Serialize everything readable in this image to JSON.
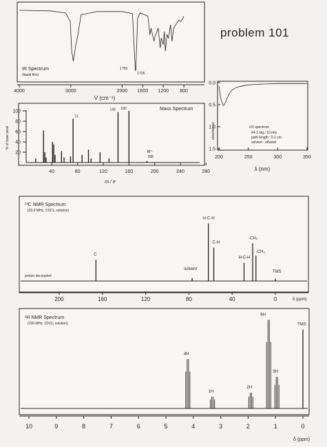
{
  "page_title": "problem 101",
  "chart_data": [
    {
      "type": "line",
      "title": "IR Spectrum",
      "subtitle": "(liquid film)",
      "xlabel": "V (cm⁻¹)",
      "xlim": [
        4000,
        400
      ],
      "x_ticks": [
        "4000",
        "3000",
        "2000",
        "1600",
        "1200",
        "800"
      ],
      "tick_values": [
        4000,
        3000,
        2000,
        1600,
        1200,
        800
      ],
      "annotations": [
        {
          "x": 1750,
          "label": "1750"
        },
        {
          "x": 1735,
          "label": "1735"
        }
      ],
      "y_ticks": [],
      "series": [
        {
          "x": [
            4000,
            3400,
            3100,
            3010,
            2980,
            2950,
            2900,
            2860,
            2800,
            2500,
            2000,
            1800,
            1760,
            1745,
            1735,
            1720,
            1700,
            1650,
            1500,
            1460,
            1440,
            1380,
            1370,
            1300,
            1260,
            1240,
            1200,
            1180,
            1160,
            1130,
            1100,
            1060,
            1030,
            1000,
            960,
            900,
            860,
            800
          ],
          "y": [
            0.97,
            0.96,
            0.93,
            0.8,
            0.35,
            0.2,
            0.45,
            0.6,
            0.9,
            0.95,
            0.95,
            0.92,
            0.3,
            0.08,
            0.05,
            0.4,
            0.85,
            0.93,
            0.88,
            0.6,
            0.7,
            0.5,
            0.55,
            0.7,
            0.4,
            0.55,
            0.45,
            0.65,
            0.35,
            0.6,
            0.55,
            0.75,
            0.5,
            0.7,
            0.75,
            0.82,
            0.8,
            0.88
          ]
        }
      ]
    },
    {
      "type": "bar",
      "title": "Mass Spectrum",
      "xlabel": "m / e",
      "ylabel": "% of base peak",
      "xlim": [
        0,
        300
      ],
      "ylim": [
        0,
        100
      ],
      "x_ticks": [
        "40",
        "80",
        "120",
        "160",
        "200",
        "240",
        "280"
      ],
      "y_ticks": [
        "20",
        "40",
        "60",
        "80",
        "100"
      ],
      "peak_labels": [
        {
          "x": 73,
          "label": "73"
        },
        {
          "x": 143,
          "label": "143"
        },
        {
          "x": 160,
          "label": "160"
        }
      ],
      "molecular_ion": {
        "label": "M⁺·",
        "mass": "188",
        "x": 188
      },
      "x": [
        15,
        27,
        29,
        31,
        41,
        43,
        45,
        55,
        59,
        69,
        73,
        87,
        97,
        101,
        115,
        129,
        143,
        160,
        188
      ],
      "values": [
        8,
        62,
        20,
        10,
        40,
        35,
        15,
        22,
        10,
        12,
        85,
        15,
        25,
        8,
        20,
        8,
        98,
        100,
        3
      ]
    },
    {
      "type": "line",
      "title": "UV spectrum",
      "info": [
        "44.1  mg / 10 mls",
        "path length : 0.1 cm",
        "solvent : ethanol"
      ],
      "xlabel": "λ (nm)",
      "ylabel": "absorbance",
      "xlim": [
        200,
        350
      ],
      "ylim": [
        0,
        1.5
      ],
      "x_ticks": [
        "200",
        "250",
        "300",
        "350"
      ],
      "y_ticks": [
        "0.0",
        "0.5",
        "1.0",
        "1.5"
      ],
      "series": [
        {
          "x": [
            200,
            203,
            206,
            208,
            211,
            214,
            218,
            222,
            228,
            235,
            245,
            260,
            280,
            300,
            330,
            350
          ],
          "y": [
            0.08,
            0.35,
            0.48,
            0.52,
            0.46,
            0.35,
            0.24,
            0.17,
            0.12,
            0.09,
            0.06,
            0.04,
            0.03,
            0.02,
            0.02,
            0.02
          ]
        }
      ]
    },
    {
      "type": "line",
      "title": "¹³C NMR Spectrum",
      "subtitle": "(20.0 MHz, CDCl₃ solution)",
      "note": "proton decoupled",
      "xlabel": "δ (ppm)",
      "xlim": [
        220,
        -5
      ],
      "x_ticks": [
        "200",
        "160",
        "120",
        "80",
        "40",
        "0"
      ],
      "tick_values": [
        200,
        160,
        120,
        80,
        40,
        0
      ],
      "peaks": [
        {
          "ppm": 166,
          "height": 0.35
        },
        {
          "ppm": 62,
          "height": 0.95
        },
        {
          "ppm": 57,
          "height": 0.55
        },
        {
          "ppm": 29,
          "height": 0.3
        },
        {
          "ppm": 21,
          "height": 0.62
        },
        {
          "ppm": 18,
          "height": 0.42
        },
        {
          "ppm": 77,
          "height": 0.05
        },
        {
          "ppm": 0,
          "height": 0.04
        }
      ],
      "peak_labels": [
        {
          "ppm": 166,
          "label": "C"
        },
        {
          "ppm": 62,
          "label": "H-C-H"
        },
        {
          "ppm": 57,
          "label": "C-H"
        },
        {
          "ppm": 29,
          "label": "H-C-H"
        },
        {
          "ppm": 21,
          "label": "-CH₃"
        },
        {
          "ppm": 18,
          "label": "-CH₃"
        },
        {
          "ppm": 77,
          "label": "solvent"
        },
        {
          "ppm": 0,
          "label": "TMS"
        }
      ]
    },
    {
      "type": "line",
      "title": "¹H NMR Spectrum",
      "subtitle": "(100 MHz, CDCl₃ solution)",
      "xlabel": "δ (ppm)",
      "xlim": [
        10.2,
        -0.2
      ],
      "x_ticks": [
        "10",
        "9",
        "8",
        "7",
        "6",
        "5",
        "4",
        "3",
        "2",
        "1",
        "0"
      ],
      "peaks": [
        {
          "ppm": 4.2,
          "height": 0.5
        },
        {
          "ppm": 3.3,
          "height": 0.12
        },
        {
          "ppm": 1.9,
          "height": 0.16
        },
        {
          "ppm": 1.25,
          "height": 0.9
        },
        {
          "ppm": 0.95,
          "height": 0.32
        },
        {
          "ppm": 0,
          "height": 0.8
        }
      ],
      "peak_labels": [
        {
          "ppm": 4.2,
          "label": "4H"
        },
        {
          "ppm": 3.3,
          "label": "1H"
        },
        {
          "ppm": 1.9,
          "label": "2H"
        },
        {
          "ppm": 1.25,
          "label": "6H"
        },
        {
          "ppm": 0.95,
          "label": "3H"
        },
        {
          "ppm": 0,
          "label": "TMS"
        }
      ]
    }
  ]
}
